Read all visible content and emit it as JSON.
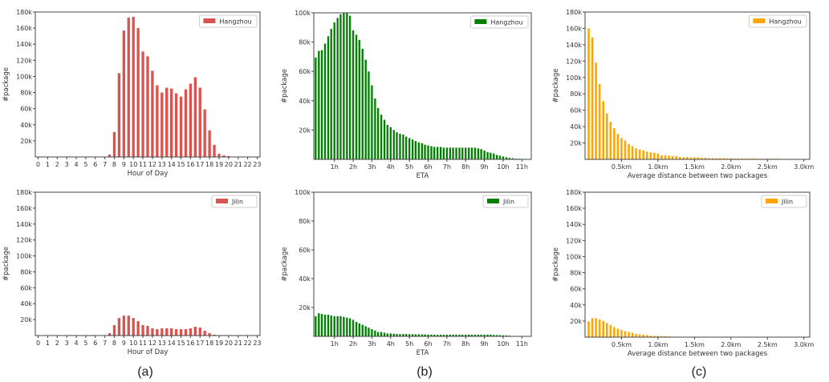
{
  "colors": {
    "hour": "#d9534f",
    "eta": "#007f00",
    "distance": "#ffa500"
  },
  "captions": [
    "(a)",
    "(b)",
    "(c)"
  ],
  "chart_data": [
    {
      "id": "hour-hangzhou",
      "type": "bar",
      "panel": 0,
      "row": 0,
      "color_key": "hour",
      "xlabel": "Hour of Day",
      "ylabel": "#package",
      "legend": "Hangzhou",
      "legend_position": "top-right",
      "xlim": [
        -0.3,
        23.3
      ],
      "ylim": [
        0,
        180
      ],
      "xticks": [
        0,
        1,
        2,
        3,
        4,
        5,
        6,
        7,
        8,
        9,
        10,
        11,
        12,
        13,
        14,
        15,
        16,
        17,
        18,
        19,
        20,
        21,
        22,
        23
      ],
      "xtick_labels": [
        "0",
        "1",
        "2",
        "3",
        "4",
        "5",
        "6",
        "7",
        "8",
        "9",
        "10",
        "11",
        "12",
        "13",
        "14",
        "15",
        "16",
        "17",
        "18",
        "19",
        "20",
        "21",
        "22",
        "23"
      ],
      "yticks": [
        20,
        40,
        60,
        80,
        100,
        120,
        140,
        160,
        180
      ],
      "ytick_labels": [
        "20k",
        "40k",
        "60k",
        "80k",
        "100k",
        "120k",
        "140k",
        "160k",
        "180k"
      ],
      "bar_width": 0.28,
      "x": [
        7.5,
        8,
        8.5,
        9,
        9.5,
        10,
        10.5,
        11,
        11.5,
        12,
        12.5,
        13,
        13.5,
        14,
        14.5,
        15,
        15.5,
        16,
        16.5,
        17,
        17.5,
        18,
        18.5,
        19,
        19.5,
        20
      ],
      "values": [
        3,
        31,
        104,
        157,
        173,
        174,
        160,
        131,
        125,
        107,
        89,
        80,
        86,
        85,
        79,
        75,
        84,
        91,
        99,
        86,
        59,
        33,
        15,
        4,
        2,
        1
      ]
    },
    {
      "id": "eta-hangzhou",
      "type": "bar",
      "panel": 1,
      "row": 0,
      "color_key": "eta",
      "xlabel": "ETA",
      "ylabel": "#package",
      "legend": "Hangzhou",
      "legend_position": "top-right",
      "xlim": [
        -0.1,
        11.5
      ],
      "ylim": [
        0,
        100
      ],
      "xticks": [
        1,
        2,
        3,
        4,
        5,
        6,
        7,
        8,
        9,
        10,
        11
      ],
      "xtick_labels": [
        "1h",
        "2h",
        "3h",
        "4h",
        "5h",
        "6h",
        "7h",
        "8h",
        "9h",
        "10h",
        "11h"
      ],
      "yticks": [
        20,
        40,
        60,
        80,
        100
      ],
      "ytick_labels": [
        "20k",
        "40k",
        "60k",
        "80k",
        "100k"
      ],
      "bar_width": 0.1,
      "x": [
        0,
        0.17,
        0.33,
        0.5,
        0.67,
        0.83,
        1,
        1.17,
        1.33,
        1.5,
        1.67,
        1.83,
        2,
        2.17,
        2.33,
        2.5,
        2.67,
        2.83,
        3,
        3.17,
        3.33,
        3.5,
        3.67,
        3.83,
        4,
        4.17,
        4.33,
        4.5,
        4.67,
        4.83,
        5,
        5.17,
        5.33,
        5.5,
        5.67,
        5.83,
        6,
        6.17,
        6.33,
        6.5,
        6.67,
        6.83,
        7,
        7.17,
        7.33,
        7.5,
        7.67,
        7.83,
        8,
        8.17,
        8.33,
        8.5,
        8.67,
        8.83,
        9,
        9.17,
        9.33,
        9.5,
        9.67,
        9.83,
        10,
        10.17,
        10.33,
        10.5,
        10.67,
        10.83,
        11,
        11.17,
        11.33
      ],
      "values": [
        69.5,
        74,
        74.5,
        79,
        84,
        89,
        93.5,
        96.5,
        99,
        100,
        100,
        98,
        88,
        85,
        81.5,
        75.5,
        68,
        60,
        50.5,
        41.5,
        35,
        30.5,
        27,
        23.5,
        22,
        20,
        18.5,
        17.5,
        17,
        15.5,
        14.5,
        13.5,
        12.5,
        11.5,
        11,
        10,
        9.5,
        9,
        8.5,
        8.5,
        8.5,
        8,
        8,
        8,
        8,
        8,
        8,
        8,
        8,
        8,
        8,
        8,
        7.5,
        7,
        6,
        5,
        4.5,
        4,
        3,
        2.5,
        2,
        1.5,
        1,
        0.8,
        0.5,
        0.4,
        0.3,
        0.2,
        0.1
      ]
    },
    {
      "id": "distance-hangzhou",
      "type": "bar",
      "panel": 2,
      "row": 0,
      "color_key": "distance",
      "xlabel": "Average distance between two packages",
      "ylabel": "#package",
      "legend": "Hangzhou",
      "legend_position": "top-right",
      "xlim": [
        0,
        3.08
      ],
      "ylim": [
        0,
        180
      ],
      "xticks": [
        0.5,
        1.0,
        1.5,
        2.0,
        2.5,
        3.0
      ],
      "xtick_labels": [
        "0.5km",
        "1.0km",
        "1.5km",
        "2.0km",
        "2.5km",
        "3.0km"
      ],
      "yticks": [
        20,
        40,
        60,
        80,
        100,
        120,
        140,
        160,
        180
      ],
      "ytick_labels": [
        "20k",
        "40k",
        "60k",
        "80k",
        "100k",
        "120k",
        "140k",
        "160k",
        "180k"
      ],
      "bar_width": 0.028,
      "x": [
        0.05,
        0.1,
        0.15,
        0.2,
        0.25,
        0.3,
        0.35,
        0.4,
        0.45,
        0.5,
        0.55,
        0.6,
        0.65,
        0.7,
        0.75,
        0.8,
        0.85,
        0.9,
        0.95,
        1.0,
        1.05,
        1.1,
        1.15,
        1.2,
        1.25,
        1.3,
        1.35,
        1.4,
        1.45,
        1.5,
        1.55,
        1.6,
        1.65,
        1.7,
        1.75,
        1.8,
        1.85,
        1.9,
        1.95,
        2.0,
        2.05,
        2.1,
        2.15,
        2.2,
        2.25,
        2.3,
        2.35,
        2.4,
        2.45,
        2.5,
        2.55,
        2.6,
        2.65
      ],
      "values": [
        160,
        149,
        118,
        92,
        71,
        56,
        46,
        38,
        31,
        26,
        23,
        18.5,
        16,
        13.5,
        12,
        11,
        9.5,
        8.5,
        8,
        7,
        5,
        5,
        4.5,
        4,
        4,
        3,
        2.5,
        3,
        2.5,
        2.5,
        2.5,
        2,
        2,
        1.5,
        1.5,
        1.5,
        1.5,
        1.5,
        1,
        1,
        1,
        1,
        1,
        1,
        1,
        1,
        1,
        0.8,
        0.8,
        0.8,
        0.8,
        0.8,
        0.8
      ]
    },
    {
      "id": "hour-jilin",
      "type": "bar",
      "panel": 0,
      "row": 1,
      "color_key": "hour",
      "xlabel": "Hour of Day",
      "ylabel": "#package",
      "legend": "Jilin",
      "legend_position": "top-right",
      "xlim": [
        -0.3,
        23.3
      ],
      "ylim": [
        0,
        180
      ],
      "xticks": [
        0,
        1,
        2,
        3,
        4,
        5,
        6,
        7,
        8,
        9,
        10,
        11,
        12,
        13,
        14,
        15,
        16,
        17,
        18,
        19,
        20,
        21,
        22,
        23
      ],
      "xtick_labels": [
        "0",
        "1",
        "2",
        "3",
        "4",
        "5",
        "6",
        "7",
        "8",
        "9",
        "10",
        "11",
        "12",
        "13",
        "14",
        "15",
        "16",
        "17",
        "18",
        "19",
        "20",
        "21",
        "22",
        "23"
      ],
      "yticks": [
        20,
        40,
        60,
        80,
        100,
        120,
        140,
        160,
        180
      ],
      "ytick_labels": [
        "20k",
        "40k",
        "60k",
        "80k",
        "100k",
        "120k",
        "140k",
        "160k",
        "180k"
      ],
      "bar_width": 0.28,
      "x": [
        7.5,
        8,
        8.5,
        9,
        9.5,
        10,
        10.5,
        11,
        11.5,
        12,
        12.5,
        13,
        13.5,
        14,
        14.5,
        15,
        15.5,
        16,
        16.5,
        17,
        17.5,
        18,
        18.5
      ],
      "values": [
        3,
        13,
        22,
        25,
        25,
        22,
        18,
        13,
        12,
        9,
        8,
        9,
        9,
        9,
        8,
        8,
        8,
        9,
        11,
        10,
        6,
        3,
        1
      ]
    },
    {
      "id": "eta-jilin",
      "type": "bar",
      "panel": 1,
      "row": 1,
      "color_key": "eta",
      "xlabel": "ETA",
      "ylabel": "#package",
      "legend": "Jilin",
      "legend_position": "top-right",
      "xlim": [
        -0.1,
        11.5
      ],
      "ylim": [
        0,
        100
      ],
      "xticks": [
        1,
        2,
        3,
        4,
        5,
        6,
        7,
        8,
        9,
        10,
        11
      ],
      "xtick_labels": [
        "1h",
        "2h",
        "3h",
        "4h",
        "5h",
        "6h",
        "7h",
        "8h",
        "9h",
        "10h",
        "11h"
      ],
      "yticks": [
        20,
        40,
        60,
        80,
        100
      ],
      "ytick_labels": [
        "20k",
        "40k",
        "60k",
        "80k",
        "100k"
      ],
      "bar_width": 0.1,
      "x": [
        0,
        0.17,
        0.33,
        0.5,
        0.67,
        0.83,
        1,
        1.17,
        1.33,
        1.5,
        1.67,
        1.83,
        2,
        2.17,
        2.33,
        2.5,
        2.67,
        2.83,
        3,
        3.17,
        3.33,
        3.5,
        3.67,
        3.83,
        4,
        4.17,
        4.33,
        4.5,
        4.67,
        4.83,
        5,
        5.17,
        5.33,
        5.5,
        5.67,
        5.83,
        6,
        6.17,
        6.33,
        6.5,
        6.67,
        6.83,
        7,
        7.17,
        7.33,
        7.5,
        7.67,
        7.83,
        8,
        8.17,
        8.33,
        8.5,
        8.67,
        8.83,
        9,
        9.17,
        9.33,
        9.5,
        9.67,
        9.83,
        10,
        10.17,
        10.33
      ],
      "values": [
        14,
        16,
        15.5,
        15,
        15,
        14.5,
        14,
        14,
        14,
        13.5,
        13,
        12.5,
        11.5,
        10,
        9,
        8,
        7,
        6,
        5,
        4,
        3,
        3,
        2.5,
        2,
        2,
        1.8,
        1.6,
        1.6,
        1.6,
        1.6,
        1.5,
        1.5,
        1.4,
        1.4,
        1.3,
        1.3,
        1.2,
        1.2,
        1.1,
        1.1,
        1.1,
        1.1,
        1.1,
        1.2,
        1.2,
        1.2,
        1.2,
        1.2,
        1.2,
        1.2,
        1.2,
        1.2,
        1.2,
        1.2,
        1.2,
        1.2,
        1.2,
        1,
        0.9,
        0.8,
        0.7,
        0.6,
        0.5
      ]
    },
    {
      "id": "distance-jilin",
      "type": "bar",
      "panel": 2,
      "row": 1,
      "color_key": "distance",
      "xlabel": "Average distance between two packages",
      "ylabel": "#package",
      "legend": "Jilin",
      "legend_position": "top-right",
      "xlim": [
        0,
        3.08
      ],
      "ylim": [
        0,
        180
      ],
      "xticks": [
        0.5,
        1.0,
        1.5,
        2.0,
        2.5,
        3.0
      ],
      "xtick_labels": [
        "0.5km",
        "1.0km",
        "1.5km",
        "2.0km",
        "2.5km",
        "3.0km"
      ],
      "yticks": [
        20,
        40,
        60,
        80,
        100,
        120,
        140,
        160,
        180
      ],
      "ytick_labels": [
        "20k",
        "40k",
        "60k",
        "80k",
        "100k",
        "120k",
        "140k",
        "160k",
        "180k"
      ],
      "bar_width": 0.028,
      "x": [
        0.05,
        0.1,
        0.15,
        0.2,
        0.25,
        0.3,
        0.35,
        0.4,
        0.45,
        0.5,
        0.55,
        0.6,
        0.65,
        0.7,
        0.75,
        0.8,
        0.85,
        0.9,
        0.95,
        1.0,
        1.05,
        1.1,
        1.15,
        1.2,
        1.25,
        1.3,
        1.35
      ],
      "values": [
        19.5,
        23.5,
        23.5,
        22,
        20,
        17.5,
        15,
        12.5,
        10.5,
        9,
        7.5,
        6.5,
        5.5,
        4,
        3.5,
        3,
        2.5,
        2,
        1.5,
        1.5,
        1,
        1,
        1,
        0.7,
        0.6,
        0.5,
        0.5
      ]
    }
  ]
}
